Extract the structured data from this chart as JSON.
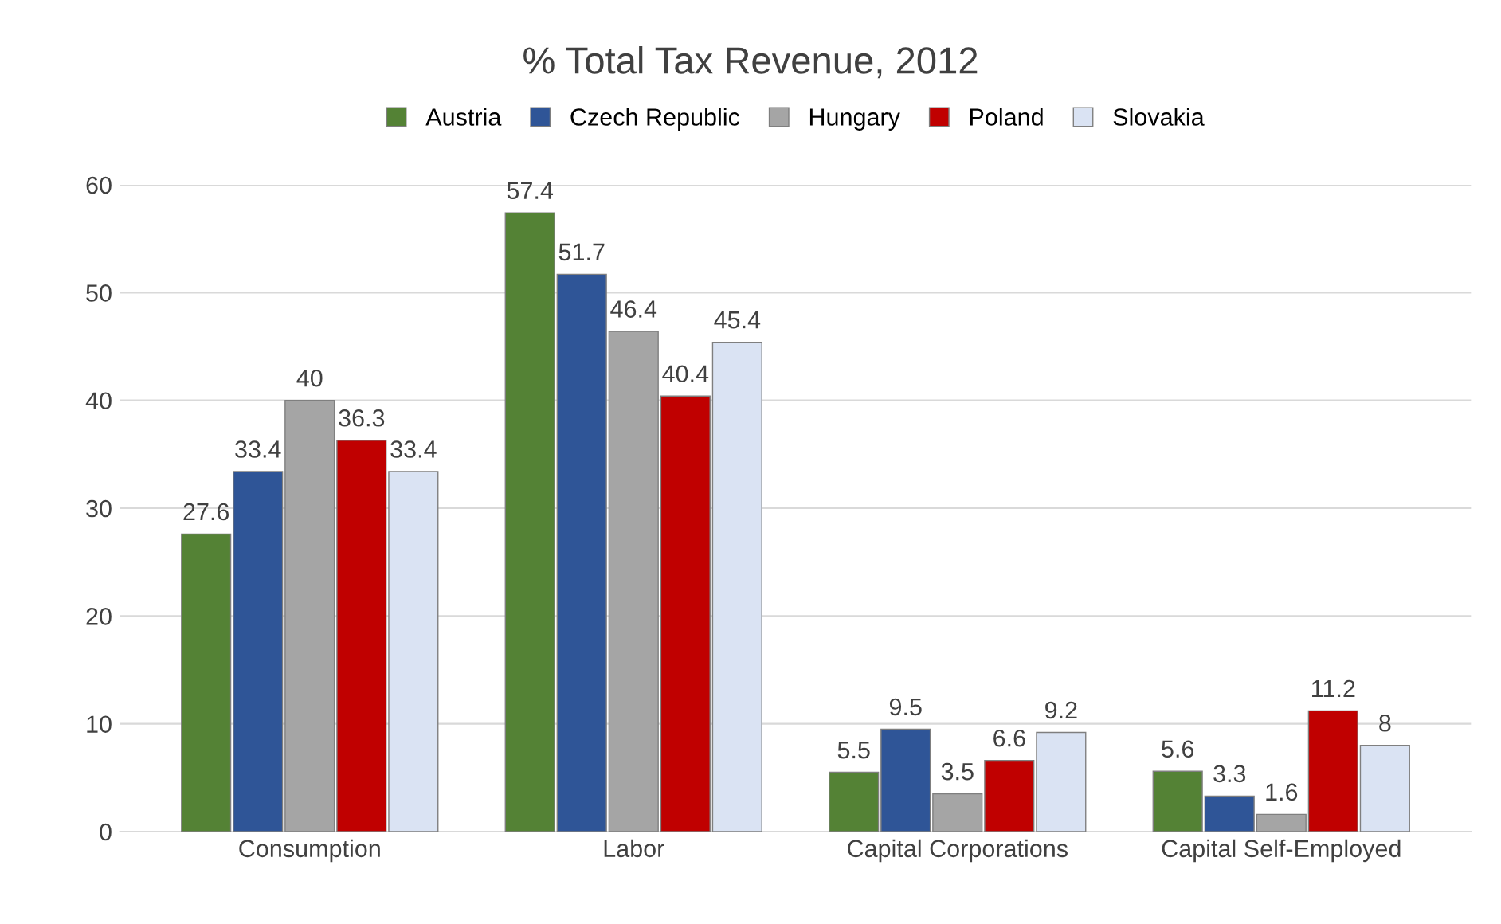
{
  "chart_data": {
    "type": "bar",
    "title": "% Total Tax Revenue, 2012",
    "categories": [
      "Consumption",
      "Labor",
      "Capital Corporations",
      "Capital Self-Employed"
    ],
    "series": [
      {
        "name": "Austria",
        "color": "#548235",
        "values": [
          27.6,
          57.4,
          5.5,
          5.6
        ]
      },
      {
        "name": "Czech Republic",
        "color": "#2f5597",
        "values": [
          33.4,
          51.7,
          9.5,
          3.3
        ]
      },
      {
        "name": "Hungary",
        "color": "#a5a5a5",
        "values": [
          40,
          46.4,
          3.5,
          1.6
        ]
      },
      {
        "name": "Poland",
        "color": "#c00000",
        "values": [
          36.3,
          40.4,
          6.6,
          11.2
        ]
      },
      {
        "name": "Slovakia",
        "color": "#dae3f3",
        "values": [
          33.4,
          45.4,
          9.2,
          8
        ]
      }
    ],
    "ylim": [
      0,
      60
    ],
    "yticks": [
      0,
      10,
      20,
      30,
      40,
      50,
      60
    ],
    "grid": "y",
    "legend": "top",
    "data_labels": true
  }
}
